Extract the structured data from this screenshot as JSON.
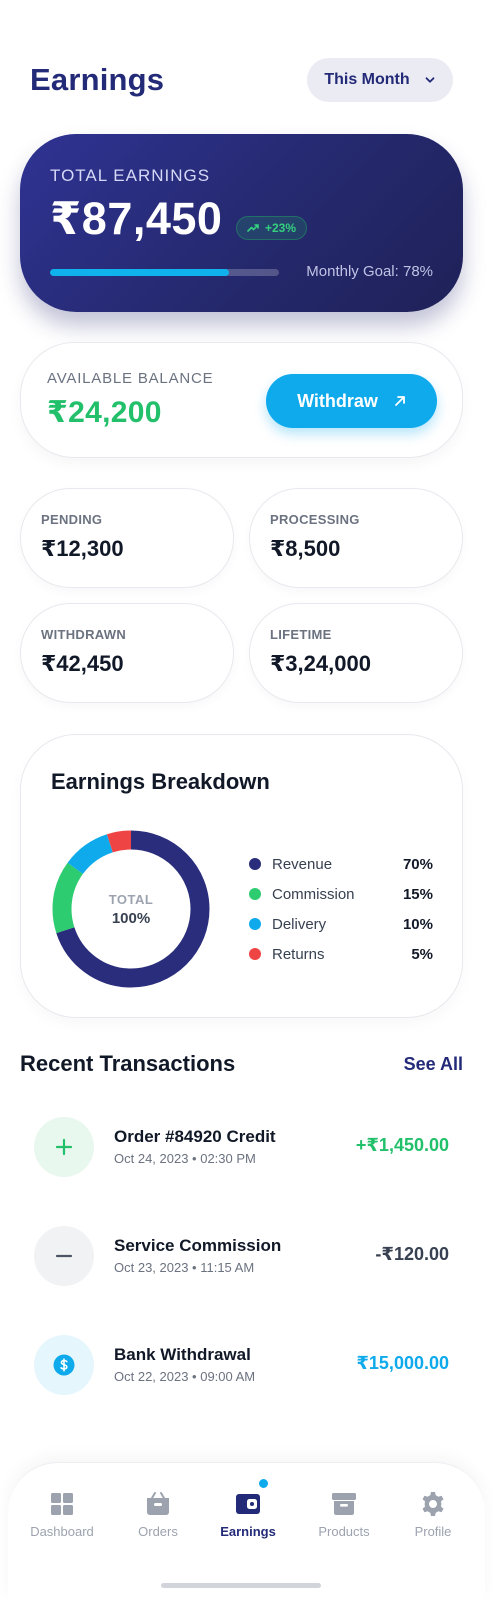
{
  "header": {
    "title": "Earnings",
    "period_selector": "This Month"
  },
  "total_earnings": {
    "label": "TOTAL EARNINGS",
    "amount": "₹87,450",
    "change_badge": "+23%",
    "goal_progress": 0.78,
    "goal_text": "Monthly Goal: 78%"
  },
  "available_balance": {
    "label": "AVAILABLE BALANCE",
    "amount": "₹24,200",
    "withdraw_label": "Withdraw"
  },
  "stats": [
    {
      "label": "PENDING",
      "value": "₹12,300"
    },
    {
      "label": "PROCESSING",
      "value": "₹8,500"
    },
    {
      "label": "WITHDRAWN",
      "value": "₹42,450"
    },
    {
      "label": "LIFETIME",
      "value": "₹3,24,000"
    }
  ],
  "breakdown": {
    "title": "Earnings Breakdown",
    "center_label": "TOTAL",
    "center_value": "100%",
    "items": [
      {
        "name": "Revenue",
        "percent_label": "70%",
        "value": 70,
        "color": "#2a2d7c"
      },
      {
        "name": "Commission",
        "percent_label": "15%",
        "value": 15,
        "color": "#2ecc71"
      },
      {
        "name": "Delivery",
        "percent_label": "10%",
        "value": 10,
        "color": "#0eaaec"
      },
      {
        "name": "Returns",
        "percent_label": "5%",
        "value": 5,
        "color": "#ef4444"
      }
    ]
  },
  "transactions": {
    "title": "Recent Transactions",
    "see_all": "See All",
    "items": [
      {
        "icon": "plus-icon",
        "name": "Order #84920 Credit",
        "date": "Oct 24, 2023 • 02:30 PM",
        "amount": "+₹1,450.00",
        "amount_color": "#22c06a",
        "icon_bg": "#e8f8ef",
        "icon_color": "#22c06a"
      },
      {
        "icon": "minus-icon",
        "name": "Service Commission",
        "date": "Oct 23, 2023 • 11:15 AM",
        "amount": "-₹120.00",
        "amount_color": "#374151",
        "icon_bg": "#f1f2f4",
        "icon_color": "#4b5563"
      },
      {
        "icon": "dollar-icon",
        "name": "Bank Withdrawal",
        "date": "Oct 22, 2023 • 09:00 AM",
        "amount": "₹15,000.00",
        "amount_color": "#0eaaec",
        "icon_bg": "#e6f6fd",
        "icon_color": "#0eaaec"
      }
    ]
  },
  "nav": {
    "items": [
      {
        "label": "Dashboard",
        "icon": "grid-icon"
      },
      {
        "label": "Orders",
        "icon": "basket-icon"
      },
      {
        "label": "Earnings",
        "icon": "wallet-icon",
        "active": true
      },
      {
        "label": "Products",
        "icon": "archive-box-icon"
      },
      {
        "label": "Profile",
        "icon": "gear-icon"
      }
    ]
  }
}
